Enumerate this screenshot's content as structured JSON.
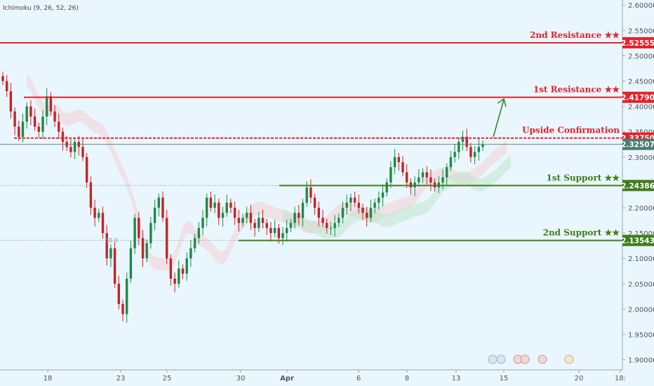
{
  "indicator_label": "Ichimoku (9, 26, 52, 26)",
  "fib_label": "50.0",
  "colors": {
    "background": "#eaf6fd",
    "resistance": "#e8202a",
    "support": "#3f7d1b",
    "last_price": "#4a7c6e",
    "up_candle": "#1e8a4a",
    "down_candle": "#c2242a",
    "arrow": "#2e8b2e"
  },
  "chart_data": {
    "type": "candlestick",
    "ylim": [
      1.88,
      2.61
    ],
    "y_ticks": [
      "2.60000",
      "2.55000",
      "2.50000",
      "2.45000",
      "2.40000",
      "2.35000",
      "2.30000",
      "2.25000",
      "2.20000",
      "2.15000",
      "2.10000",
      "2.05000",
      "2.00000",
      "1.95000",
      "1.90000"
    ],
    "x_ticks": [
      "18",
      "23",
      "25",
      "30",
      "Apr",
      "6",
      "8",
      "13",
      "15",
      "20",
      "18:"
    ],
    "levels": [
      {
        "label": "2nd Resistance ★★",
        "value": 2.52555,
        "price": "2.52555",
        "kind": "resistance",
        "style": "solid"
      },
      {
        "label": "1st Resistance ★★",
        "value": 2.4179,
        "price": "2.41790",
        "kind": "resistance",
        "style": "solid"
      },
      {
        "label": "Upside Confirmation",
        "value": 2.3375,
        "price": "2.33750",
        "kind": "resistance",
        "style": "dashed"
      },
      {
        "label": "1st Support ★★",
        "value": 2.24386,
        "price": "2.24386",
        "kind": "support",
        "style": "solid"
      },
      {
        "label": "2nd Support ★★",
        "value": 2.13543,
        "price": "2.13543",
        "kind": "support",
        "style": "solid"
      }
    ],
    "last_price": {
      "value": 2.32507,
      "price": "2.32507"
    },
    "closes": [
      2.45,
      2.43,
      2.39,
      2.36,
      2.34,
      2.37,
      2.4,
      2.38,
      2.36,
      2.35,
      2.38,
      2.42,
      2.39,
      2.37,
      2.35,
      2.33,
      2.32,
      2.31,
      2.33,
      2.32,
      2.3,
      2.25,
      2.2,
      2.18,
      2.19,
      2.15,
      2.1,
      2.12,
      2.05,
      2.01,
      1.99,
      2.06,
      2.12,
      2.18,
      2.14,
      2.1,
      2.13,
      2.17,
      2.2,
      2.22,
      2.18,
      2.1,
      2.06,
      2.05,
      2.08,
      2.07,
      2.1,
      2.12,
      2.14,
      2.16,
      2.18,
      2.22,
      2.2,
      2.21,
      2.18,
      2.19,
      2.21,
      2.2,
      2.18,
      2.17,
      2.18,
      2.19,
      2.17,
      2.16,
      2.18,
      2.17,
      2.16,
      2.15,
      2.16,
      2.14,
      2.15,
      2.16,
      2.17,
      2.19,
      2.18,
      2.21,
      2.24,
      2.22,
      2.2,
      2.18,
      2.17,
      2.16,
      2.16,
      2.17,
      2.18,
      2.2,
      2.21,
      2.22,
      2.21,
      2.2,
      2.19,
      2.18,
      2.2,
      2.21,
      2.22,
      2.23,
      2.25,
      2.28,
      2.3,
      2.29,
      2.27,
      2.25,
      2.24,
      2.25,
      2.26,
      2.27,
      2.26,
      2.25,
      2.24,
      2.25,
      2.26,
      2.28,
      2.3,
      2.31,
      2.33,
      2.34,
      2.32,
      2.3,
      2.31,
      2.32,
      2.325
    ]
  }
}
